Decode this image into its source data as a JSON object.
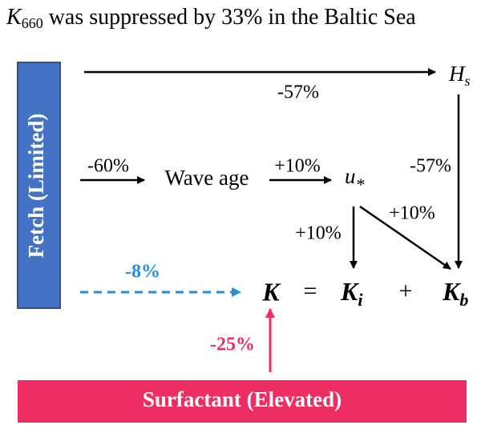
{
  "title": {
    "symbol": "K",
    "subscript": "660",
    "text": " was suppressed by 33% in the Baltic Sea"
  },
  "nodes": {
    "fetch": "Fetch (Limited)",
    "hs": {
      "symbol": "H",
      "subscript": "s"
    },
    "wave_age": "Wave age",
    "u_star": {
      "symbol": "u",
      "subscript": "*"
    },
    "surfactant": "Surfactant (Elevated)"
  },
  "equation": {
    "k": "K",
    "equals": "=",
    "ki": {
      "symbol": "K",
      "subscript": "i"
    },
    "plus": "+",
    "kb": {
      "symbol": "K",
      "subscript": "b"
    }
  },
  "edges": [
    {
      "label": "-57%"
    },
    {
      "label": "-57%"
    },
    {
      "label": "-60%"
    },
    {
      "label": "+10%"
    },
    {
      "label": "+10%"
    },
    {
      "label": "+10%"
    },
    {
      "label": "-8%"
    },
    {
      "label": "-25%"
    }
  ]
}
